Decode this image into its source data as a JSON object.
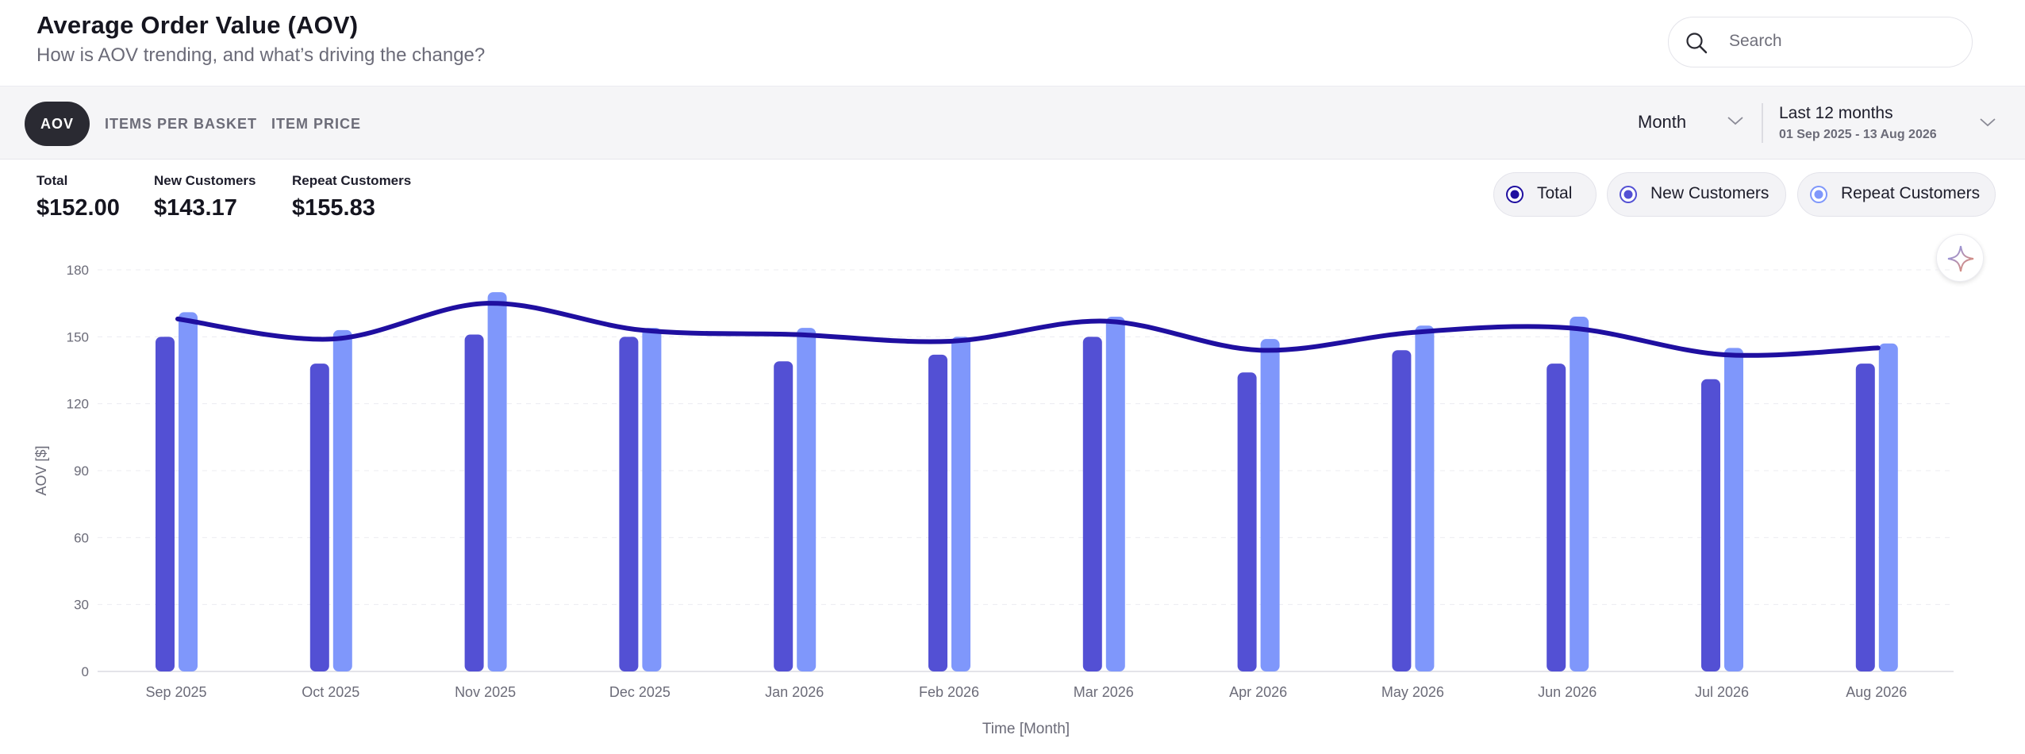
{
  "header": {
    "title": "Average Order Value (AOV)",
    "subtitle": "How is AOV trending, and what’s driving the change?"
  },
  "search": {
    "placeholder": "Search",
    "icon": "search-icon"
  },
  "tabs": [
    {
      "label": "AOV",
      "active": true
    },
    {
      "label": "ITEMS PER BASKET",
      "active": false
    },
    {
      "label": "ITEM PRICE",
      "active": false
    }
  ],
  "granularity": {
    "value": "Month"
  },
  "date_range": {
    "label": "Last 12 months",
    "range": "01 Sep 2025 - 13 Aug 2026"
  },
  "kpis": [
    {
      "label": "Total",
      "value": "$152.00"
    },
    {
      "label": "New Customers",
      "value": "$143.17"
    },
    {
      "label": "Repeat Customers",
      "value": "$155.83"
    }
  ],
  "legend": [
    {
      "label": "Total",
      "color": "#1f0fa0"
    },
    {
      "label": "New Customers",
      "color": "#5350d4"
    },
    {
      "label": "Repeat Customers",
      "color": "#7f97fb"
    }
  ],
  "colors": {
    "total": "#1f0fa0",
    "new": "#5350d4",
    "repeat": "#7f97fb",
    "grid": "#ececf1",
    "axis_text": "#6b6b78"
  },
  "chart_data": {
    "type": "bar",
    "categories": [
      "Sep 2025",
      "Oct 2025",
      "Nov 2025",
      "Dec 2025",
      "Jan 2026",
      "Feb 2026",
      "Mar 2026",
      "Apr 2026",
      "May 2026",
      "Jun 2026",
      "Jul 2026",
      "Aug 2026"
    ],
    "series": [
      {
        "name": "New Customers",
        "type": "bar",
        "values": [
          150,
          138,
          151,
          150,
          139,
          142,
          150,
          134,
          144,
          138,
          131,
          138
        ]
      },
      {
        "name": "Repeat Customers",
        "type": "bar",
        "values": [
          161,
          153,
          170,
          154,
          154,
          150,
          159,
          149,
          155,
          159,
          145,
          147
        ]
      },
      {
        "name": "Total",
        "type": "line",
        "values": [
          158,
          149,
          165,
          153,
          151,
          148,
          157,
          144,
          152,
          154,
          142,
          145
        ]
      }
    ],
    "xlabel": "Time [Month]",
    "ylabel": "AOV [$]",
    "ylim": [
      0,
      180
    ],
    "yticks": [
      0,
      30,
      60,
      90,
      120,
      150,
      180
    ],
    "grid": true,
    "legend": "top-right"
  }
}
